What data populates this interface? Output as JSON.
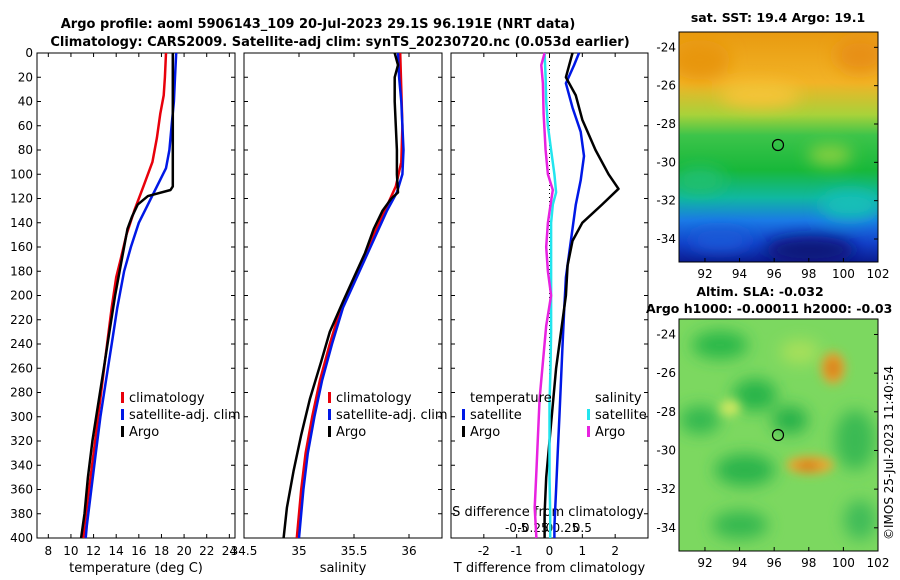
{
  "title_line1": "Argo profile: aoml 5906143_109 20-Jul-2023 29.1S 96.191E (NRT data)",
  "title_line2": "Climatology: CARS2009. Satellite-adj clim: synTS_20230720.nc (0.053d earlier)",
  "watermark": "©IMOS 25-Jul-2023 11:40:54",
  "colors": {
    "climatology": "#e8000b",
    "satellite": "#0018e6",
    "argo": "#000000",
    "sal_sat": "#22e5ee",
    "sal_argo": "#e822e0"
  },
  "chart_data": [
    {
      "type": "line",
      "id": "temperature-profile",
      "xlabel": "temperature (deg C)",
      "xlim": [
        7,
        24.5
      ],
      "ylim": [
        400,
        0
      ],
      "xticks": [
        8,
        10,
        12,
        14,
        16,
        18,
        20,
        22,
        24
      ],
      "yticks": [
        0,
        20,
        40,
        60,
        80,
        100,
        120,
        140,
        160,
        180,
        200,
        220,
        240,
        260,
        280,
        300,
        320,
        340,
        360,
        380,
        400
      ],
      "legend": [
        "climatology",
        "satellite-adj. clim",
        "Argo"
      ],
      "series": [
        {
          "name": "climatology",
          "color": "climatology",
          "points": [
            [
              18.4,
              0
            ],
            [
              18.3,
              20
            ],
            [
              18.2,
              35
            ],
            [
              17.9,
              50
            ],
            [
              17.6,
              70
            ],
            [
              17.2,
              90
            ],
            [
              16.4,
              110
            ],
            [
              15.6,
              130
            ],
            [
              14.9,
              150
            ],
            [
              14.4,
              170
            ],
            [
              14.0,
              185
            ],
            [
              13.6,
              210
            ],
            [
              13.2,
              240
            ],
            [
              12.8,
              270
            ],
            [
              12.4,
              300
            ],
            [
              12.0,
              330
            ],
            [
              11.6,
              360
            ],
            [
              11.2,
              390
            ],
            [
              11.1,
              400
            ]
          ]
        },
        {
          "name": "satellite-adj. clim",
          "color": "satellite",
          "points": [
            [
              19.3,
              0
            ],
            [
              19.2,
              20
            ],
            [
              19.1,
              40
            ],
            [
              18.9,
              60
            ],
            [
              18.7,
              80
            ],
            [
              18.4,
              95
            ],
            [
              17.6,
              110
            ],
            [
              16.8,
              125
            ],
            [
              16.0,
              140
            ],
            [
              15.3,
              160
            ],
            [
              14.7,
              180
            ],
            [
              14.1,
              210
            ],
            [
              13.6,
              240
            ],
            [
              13.1,
              270
            ],
            [
              12.6,
              300
            ],
            [
              12.2,
              330
            ],
            [
              11.8,
              360
            ],
            [
              11.4,
              390
            ],
            [
              11.3,
              400
            ]
          ]
        },
        {
          "name": "Argo",
          "color": "argo",
          "points": [
            [
              19.0,
              0
            ],
            [
              19.0,
              20
            ],
            [
              19.0,
              50
            ],
            [
              19.0,
              80
            ],
            [
              19.0,
              100
            ],
            [
              19.0,
              110
            ],
            [
              18.8,
              113
            ],
            [
              16.8,
              118
            ],
            [
              15.9,
              125
            ],
            [
              15.4,
              135
            ],
            [
              15.0,
              145
            ],
            [
              14.7,
              160
            ],
            [
              14.3,
              180
            ],
            [
              13.9,
              200
            ],
            [
              13.4,
              230
            ],
            [
              12.9,
              260
            ],
            [
              12.4,
              290
            ],
            [
              11.9,
              320
            ],
            [
              11.5,
              350
            ],
            [
              11.2,
              380
            ],
            [
              10.9,
              400
            ]
          ]
        }
      ]
    },
    {
      "type": "line",
      "id": "salinity-profile",
      "xlabel": "salinity",
      "xlim": [
        34.5,
        36.3
      ],
      "ylim": [
        400,
        0
      ],
      "xticks": [
        34.5,
        35,
        35.5,
        36
      ],
      "legend": [
        "climatology",
        "satellite-adj. clim",
        "Argo"
      ],
      "series": [
        {
          "name": "climatology",
          "color": "climatology",
          "points": [
            [
              35.92,
              0
            ],
            [
              35.93,
              30
            ],
            [
              35.94,
              60
            ],
            [
              35.93,
              90
            ],
            [
              35.88,
              110
            ],
            [
              35.78,
              130
            ],
            [
              35.68,
              150
            ],
            [
              35.58,
              170
            ],
            [
              35.48,
              190
            ],
            [
              35.38,
              210
            ],
            [
              35.28,
              240
            ],
            [
              35.19,
              270
            ],
            [
              35.12,
              300
            ],
            [
              35.06,
              330
            ],
            [
              35.02,
              360
            ],
            [
              34.99,
              390
            ],
            [
              34.98,
              400
            ]
          ]
        },
        {
          "name": "satellite-adj. clim",
          "color": "satellite",
          "points": [
            [
              35.9,
              0
            ],
            [
              35.91,
              20
            ],
            [
              35.93,
              40
            ],
            [
              35.94,
              60
            ],
            [
              35.95,
              80
            ],
            [
              35.94,
              100
            ],
            [
              35.89,
              115
            ],
            [
              35.8,
              130
            ],
            [
              35.7,
              150
            ],
            [
              35.6,
              170
            ],
            [
              35.5,
              190
            ],
            [
              35.4,
              210
            ],
            [
              35.3,
              240
            ],
            [
              35.21,
              270
            ],
            [
              35.14,
              300
            ],
            [
              35.08,
              330
            ],
            [
              35.04,
              360
            ],
            [
              35.01,
              390
            ],
            [
              35.0,
              400
            ]
          ]
        },
        {
          "name": "Argo",
          "color": "argo",
          "points": [
            [
              35.87,
              0
            ],
            [
              35.9,
              10
            ],
            [
              35.87,
              20
            ],
            [
              35.87,
              40
            ],
            [
              35.88,
              60
            ],
            [
              35.89,
              80
            ],
            [
              35.89,
              100
            ],
            [
              35.9,
              115
            ],
            [
              35.84,
              120
            ],
            [
              35.76,
              130
            ],
            [
              35.68,
              145
            ],
            [
              35.6,
              165
            ],
            [
              35.5,
              185
            ],
            [
              35.4,
              205
            ],
            [
              35.28,
              230
            ],
            [
              35.2,
              255
            ],
            [
              35.1,
              285
            ],
            [
              35.02,
              315
            ],
            [
              34.95,
              345
            ],
            [
              34.89,
              375
            ],
            [
              34.86,
              400
            ]
          ]
        }
      ]
    },
    {
      "type": "line",
      "id": "difference-profile",
      "xlabel": "T difference from climatology",
      "top_xlabel": "S difference from climatology",
      "xlim": [
        -3,
        3
      ],
      "ylim": [
        400,
        0
      ],
      "xticks": [
        -2,
        -1,
        0,
        1,
        2
      ],
      "top_xtick_labels": [
        "-0.5",
        "-0.25",
        "0",
        "0.25",
        "0.5"
      ],
      "top_xtick_values": [
        -1,
        -0.5,
        0,
        0.5,
        1
      ],
      "legend_temperature": {
        "header": "temperature",
        "items": [
          "satellite",
          "Argo"
        ]
      },
      "legend_salinity": {
        "header": "salinity",
        "items": [
          "satellite",
          "Argo"
        ]
      },
      "series": [
        {
          "name": "temperature satellite",
          "color": "satellite",
          "points": [
            [
              0.9,
              0
            ],
            [
              0.75,
              10
            ],
            [
              0.5,
              25
            ],
            [
              0.7,
              45
            ],
            [
              0.95,
              65
            ],
            [
              1.05,
              85
            ],
            [
              0.95,
              105
            ],
            [
              0.8,
              125
            ],
            [
              0.7,
              145
            ],
            [
              0.6,
              165
            ],
            [
              0.5,
              185
            ],
            [
              0.45,
              210
            ],
            [
              0.4,
              240
            ],
            [
              0.35,
              270
            ],
            [
              0.3,
              300
            ],
            [
              0.25,
              330
            ],
            [
              0.2,
              360
            ],
            [
              0.15,
              390
            ],
            [
              0.15,
              400
            ]
          ]
        },
        {
          "name": "temperature Argo",
          "color": "argo",
          "points": [
            [
              0.7,
              0
            ],
            [
              0.6,
              10
            ],
            [
              0.5,
              20
            ],
            [
              0.8,
              35
            ],
            [
              1.0,
              55
            ],
            [
              1.4,
              80
            ],
            [
              1.8,
              100
            ],
            [
              2.1,
              112
            ],
            [
              1.6,
              125
            ],
            [
              1.0,
              140
            ],
            [
              0.7,
              155
            ],
            [
              0.55,
              175
            ],
            [
              0.5,
              200
            ],
            [
              0.35,
              230
            ],
            [
              0.2,
              260
            ],
            [
              0.1,
              290
            ],
            [
              0.0,
              320
            ],
            [
              -0.1,
              350
            ],
            [
              -0.15,
              380
            ],
            [
              -0.15,
              400
            ]
          ]
        },
        {
          "name": "salinity satellite",
          "color": "sal_sat",
          "points": [
            [
              -0.15,
              0
            ],
            [
              -0.12,
              20
            ],
            [
              -0.1,
              40
            ],
            [
              -0.05,
              60
            ],
            [
              0.05,
              80
            ],
            [
              0.15,
              100
            ],
            [
              0.2,
              115
            ],
            [
              0.1,
              125
            ],
            [
              0.05,
              140
            ],
            [
              0.05,
              160
            ],
            [
              0.05,
              180
            ],
            [
              0.05,
              200
            ],
            [
              0.05,
              230
            ],
            [
              0.03,
              260
            ],
            [
              0.0,
              290
            ],
            [
              0.0,
              320
            ],
            [
              0.0,
              350
            ],
            [
              0.02,
              380
            ],
            [
              0.02,
              400
            ]
          ]
        },
        {
          "name": "salinity Argo",
          "color": "sal_argo",
          "points": [
            [
              -0.15,
              0
            ],
            [
              -0.25,
              10
            ],
            [
              -0.2,
              25
            ],
            [
              -0.18,
              50
            ],
            [
              -0.12,
              80
            ],
            [
              -0.05,
              100
            ],
            [
              0.1,
              113
            ],
            [
              0.05,
              122
            ],
            [
              -0.05,
              140
            ],
            [
              -0.1,
              160
            ],
            [
              -0.05,
              180
            ],
            [
              0.05,
              200
            ],
            [
              -0.1,
              225
            ],
            [
              -0.2,
              255
            ],
            [
              -0.3,
              285
            ],
            [
              -0.35,
              315
            ],
            [
              -0.4,
              345
            ],
            [
              -0.45,
              375
            ],
            [
              -0.4,
              400
            ]
          ]
        }
      ]
    },
    {
      "type": "heatmap",
      "id": "sst-map",
      "title": "sat. SST: 19.4 Argo: 19.1",
      "xlim": [
        90.5,
        102
      ],
      "ylim": [
        -35.2,
        -23.2
      ],
      "xticks": [
        92,
        94,
        96,
        98,
        100,
        102
      ],
      "yticks": [
        -24,
        -26,
        -28,
        -30,
        -32,
        -34
      ],
      "argo_position": [
        96.19,
        -29.1
      ]
    },
    {
      "type": "heatmap",
      "id": "sla-map",
      "title": "Altim. SLA: -0.032",
      "subtitle": "Argo h1000: -0.00011 h2000: -0.03",
      "xlim": [
        90.5,
        102
      ],
      "ylim": [
        -35.2,
        -23.2
      ],
      "xticks": [
        92,
        94,
        96,
        98,
        100,
        102
      ],
      "yticks": [
        -24,
        -26,
        -28,
        -30,
        -32,
        -34
      ],
      "argo_position": [
        96.19,
        -29.1
      ]
    }
  ]
}
